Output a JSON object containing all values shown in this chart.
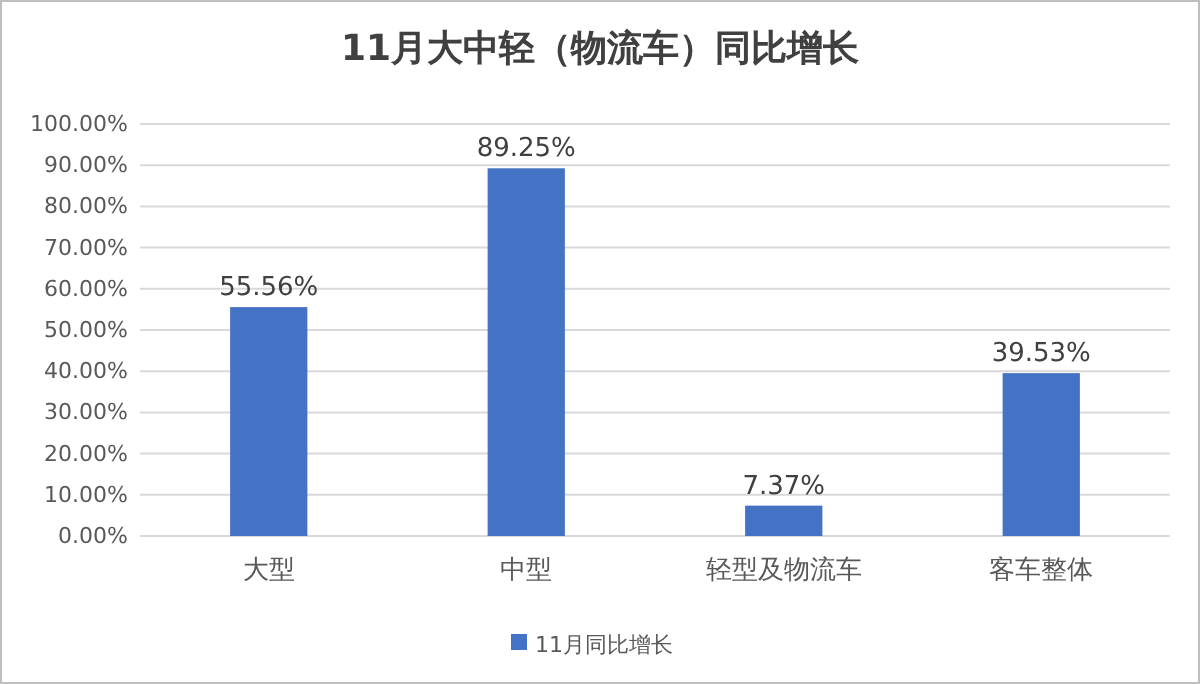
{
  "chart_data": {
    "type": "bar",
    "title": "11月大中轻（物流车）同比增长",
    "categories": [
      "大型",
      "中型",
      "轻型及物流车",
      "客车整体"
    ],
    "series": [
      {
        "name": "11月同比增长",
        "color": "#4472c4",
        "values": [
          55.56,
          89.25,
          7.37,
          39.53
        ],
        "value_labels": [
          "55.56%",
          "89.25%",
          "7.37%",
          "39.53%"
        ]
      }
    ],
    "ylim": [
      0,
      100
    ],
    "yticks": [
      {
        "value": 0,
        "label": "0.00%"
      },
      {
        "value": 10,
        "label": "10.00%"
      },
      {
        "value": 20,
        "label": "20.00%"
      },
      {
        "value": 30,
        "label": "30.00%"
      },
      {
        "value": 40,
        "label": "40.00%"
      },
      {
        "value": 50,
        "label": "50.00%"
      },
      {
        "value": 60,
        "label": "60.00%"
      },
      {
        "value": 70,
        "label": "70.00%"
      },
      {
        "value": 80,
        "label": "80.00%"
      },
      {
        "value": 90,
        "label": "90.00%"
      },
      {
        "value": 100,
        "label": "100.00%"
      }
    ],
    "grid": "y",
    "legend": "bottom"
  }
}
